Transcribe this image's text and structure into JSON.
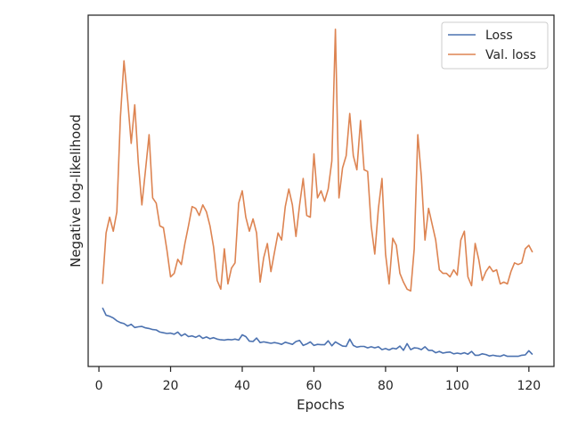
{
  "chart_data": {
    "type": "line",
    "xlabel": "Epochs",
    "ylabel": "Negative log-likelihood",
    "xlim": [
      -3,
      127
    ],
    "ylim": [
      0,
      100
    ],
    "x_ticks": [
      0,
      20,
      40,
      60,
      80,
      100,
      120
    ],
    "y_ticks": [],
    "grid": false,
    "legend": {
      "position": "top-right"
    },
    "series": [
      {
        "name": "Loss",
        "color": "#4c72b0",
        "x": [
          1,
          2,
          3,
          4,
          5,
          6,
          7,
          8,
          9,
          10,
          11,
          12,
          13,
          14,
          15,
          16,
          17,
          18,
          19,
          20,
          21,
          22,
          23,
          24,
          25,
          26,
          27,
          28,
          29,
          30,
          31,
          32,
          33,
          34,
          35,
          36,
          37,
          38,
          39,
          40,
          41,
          42,
          43,
          44,
          45,
          46,
          47,
          48,
          49,
          50,
          51,
          52,
          53,
          54,
          55,
          56,
          57,
          58,
          59,
          60,
          61,
          62,
          63,
          64,
          65,
          66,
          67,
          68,
          69,
          70,
          71,
          72,
          73,
          74,
          75,
          76,
          77,
          78,
          79,
          80,
          81,
          82,
          83,
          84,
          85,
          86,
          87,
          88,
          89,
          90,
          91,
          92,
          93,
          94,
          95,
          96,
          97,
          98,
          99,
          100,
          101,
          102,
          103,
          104,
          105,
          106,
          107,
          108,
          109,
          110,
          111,
          112,
          113,
          114,
          115,
          116,
          117,
          118,
          119,
          120,
          121
        ],
        "values": [
          16.7,
          14.6,
          14.3,
          13.8,
          13.0,
          12.5,
          12.2,
          11.5,
          12.0,
          11.1,
          11.3,
          11.4,
          11.0,
          10.8,
          10.5,
          10.4,
          9.8,
          9.6,
          9.4,
          9.5,
          9.2,
          9.8,
          8.7,
          9.3,
          8.5,
          8.7,
          8.3,
          8.8,
          8.0,
          8.4,
          7.9,
          8.2,
          7.8,
          7.6,
          7.5,
          7.7,
          7.6,
          7.8,
          7.5,
          9.0,
          8.5,
          7.2,
          7.1,
          8.1,
          6.8,
          7.0,
          6.8,
          6.6,
          6.8,
          6.6,
          6.3,
          6.9,
          6.6,
          6.3,
          7.1,
          7.4,
          6.0,
          6.4,
          7.0,
          6.0,
          6.3,
          6.2,
          6.2,
          7.3,
          5.9,
          7.0,
          6.4,
          5.8,
          5.7,
          7.8,
          6.0,
          5.5,
          5.7,
          5.7,
          5.3,
          5.6,
          5.3,
          5.6,
          4.8,
          5.1,
          4.7,
          5.2,
          5.0,
          5.8,
          4.6,
          6.5,
          4.8,
          5.3,
          5.2,
          4.8,
          5.6,
          4.6,
          4.6,
          3.9,
          4.3,
          3.8,
          4.0,
          4.1,
          3.6,
          3.8,
          3.6,
          3.9,
          3.5,
          4.3,
          3.2,
          3.2,
          3.6,
          3.4,
          3.0,
          3.2,
          3.0,
          2.9,
          3.3,
          2.9,
          2.9,
          2.9,
          2.9,
          3.2,
          3.3,
          4.5,
          3.4
        ]
      },
      {
        "name": "Val. loss",
        "color": "#dd8452",
        "x": [
          1,
          2,
          3,
          4,
          5,
          6,
          7,
          8,
          9,
          10,
          11,
          12,
          13,
          14,
          15,
          16,
          17,
          18,
          19,
          20,
          21,
          22,
          23,
          24,
          25,
          26,
          27,
          28,
          29,
          30,
          31,
          32,
          33,
          34,
          35,
          36,
          37,
          38,
          39,
          40,
          41,
          42,
          43,
          44,
          45,
          46,
          47,
          48,
          49,
          50,
          51,
          52,
          53,
          54,
          55,
          56,
          57,
          58,
          59,
          60,
          61,
          62,
          63,
          64,
          65,
          66,
          67,
          68,
          69,
          70,
          71,
          72,
          73,
          74,
          75,
          76,
          77,
          78,
          79,
          80,
          81,
          82,
          83,
          84,
          85,
          86,
          87,
          88,
          89,
          90,
          91,
          92,
          93,
          94,
          95,
          96,
          97,
          98,
          99,
          100,
          101,
          102,
          103,
          104,
          105,
          106,
          107,
          108,
          109,
          110,
          111,
          112,
          113,
          114,
          115,
          116,
          117,
          118,
          119,
          120,
          121
        ],
        "values": [
          23.5,
          38.0,
          42.5,
          38.5,
          44.0,
          71.0,
          87.0,
          76.0,
          63.5,
          74.5,
          58.0,
          46.0,
          56.0,
          66.0,
          48.0,
          46.5,
          40.0,
          39.5,
          33.0,
          25.5,
          26.5,
          30.5,
          29.0,
          35.0,
          40.0,
          45.5,
          45.0,
          43.0,
          46.0,
          44.0,
          40.0,
          34.0,
          24.5,
          22.0,
          33.5,
          23.5,
          28.0,
          29.5,
          46.5,
          50.0,
          42.5,
          38.5,
          42.0,
          38.0,
          24.0,
          31.0,
          35.0,
          27.0,
          32.5,
          38.0,
          36.0,
          45.5,
          50.5,
          46.0,
          37.0,
          46.0,
          53.5,
          43.0,
          42.5,
          60.5,
          48.0,
          50.0,
          47.0,
          50.5,
          58.5,
          96.0,
          48.0,
          56.5,
          60.0,
          72.0,
          60.0,
          56.0,
          70.0,
          56.0,
          55.5,
          40.0,
          32.0,
          45.0,
          53.5,
          32.0,
          23.5,
          36.5,
          34.5,
          26.5,
          24.0,
          22.0,
          21.5,
          33.5,
          66.0,
          54.0,
          36.0,
          45.0,
          40.5,
          36.0,
          27.5,
          26.5,
          26.5,
          25.5,
          27.5,
          26.0,
          36.0,
          38.5,
          25.5,
          23.0,
          35.0,
          30.5,
          24.5,
          27.0,
          28.5,
          27.0,
          27.5,
          23.5,
          24.0,
          23.5,
          27.0,
          29.5,
          29.0,
          29.5,
          33.5,
          34.5,
          32.5
        ]
      }
    ]
  }
}
